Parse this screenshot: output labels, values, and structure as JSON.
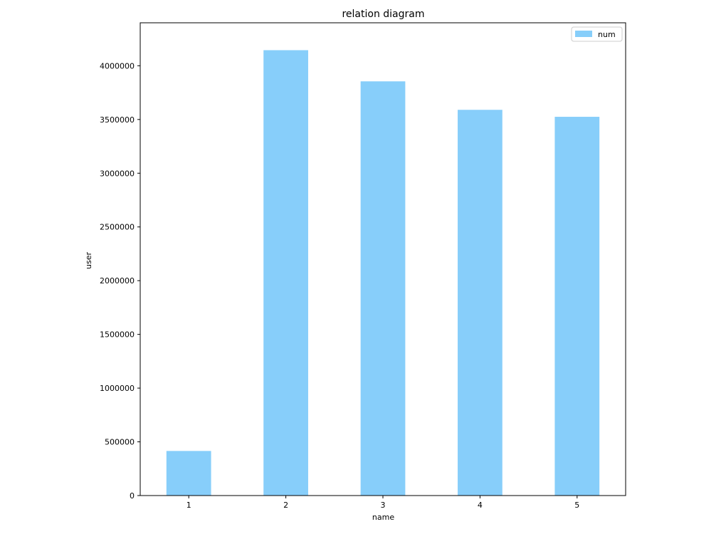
{
  "chart_data": {
    "type": "bar",
    "title": "relation diagram",
    "xlabel": "name",
    "ylabel": "user",
    "categories": [
      "1",
      "2",
      "3",
      "4",
      "5"
    ],
    "series": [
      {
        "name": "num",
        "values": [
          415000,
          4145000,
          3855000,
          3590000,
          3525000
        ],
        "color": "#87CEFA"
      }
    ],
    "ylim": [
      0,
      4400000
    ],
    "yticks": [
      0,
      500000,
      1000000,
      1500000,
      2000000,
      2500000,
      3000000,
      3500000,
      4000000
    ],
    "ytick_labels": [
      "0",
      "500000",
      "1000000",
      "1500000",
      "2000000",
      "2500000",
      "3000000",
      "3500000",
      "4000000"
    ],
    "grid": false,
    "legend": "top-right"
  }
}
